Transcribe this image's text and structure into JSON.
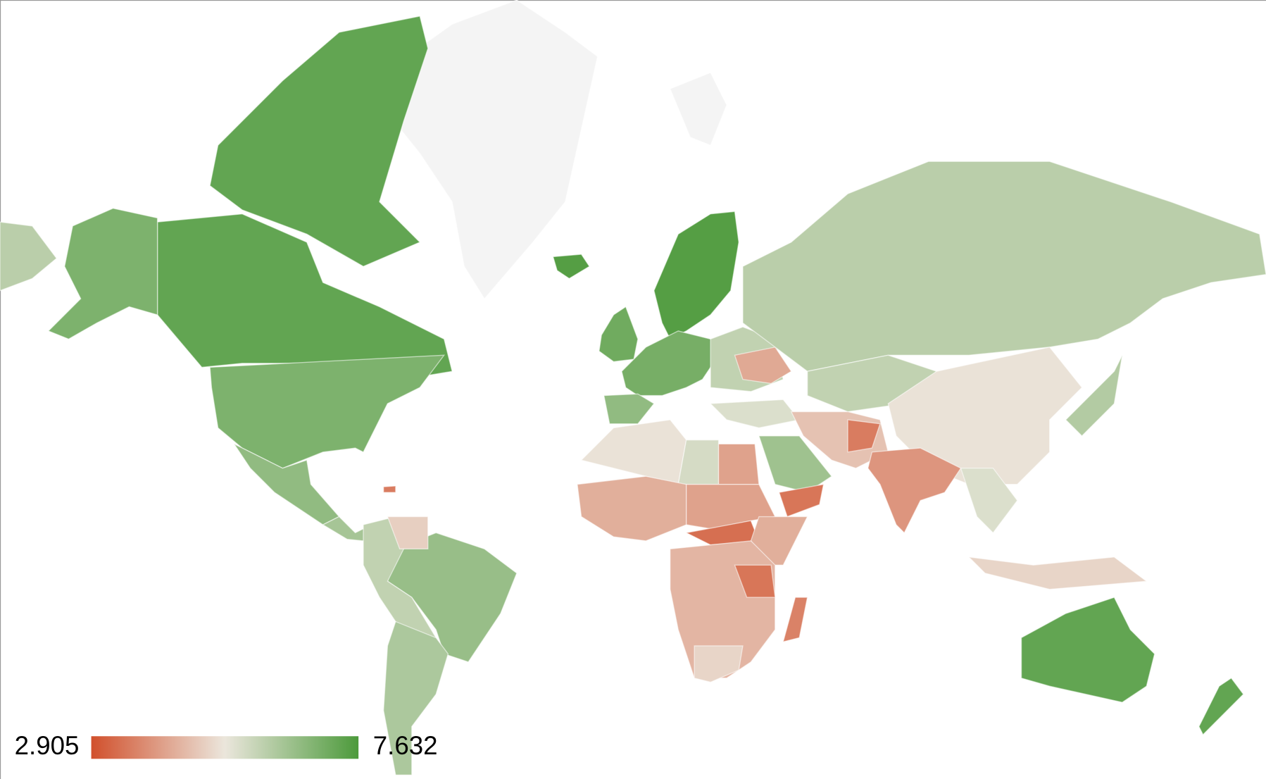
{
  "chart_data": {
    "type": "geo",
    "colorAxis": {
      "minValue": 2.905,
      "maxValue": 7.632,
      "colors": [
        "#d1502c",
        "#ebe6dc",
        "#4c9a3b"
      ]
    },
    "values": [
      7.3,
      6.9,
      6.9,
      6.6,
      6.3,
      6.5,
      5.9,
      4.9,
      6.2,
      7.5,
      7.5,
      7.1,
      7.0,
      6.6,
      5.9,
      4.3,
      6.0,
      5.9,
      5.2,
      5.5,
      4.7,
      3.6,
      6.4,
      3.5,
      4.0,
      5.5,
      5.0,
      6.1,
      5.2,
      5.6,
      4.2,
      4.4,
      4.2,
      3.4,
      4.4,
      4.5,
      3.5,
      5.0,
      3.7,
      7.3,
      7.3,
      3.6
    ]
  }
}
